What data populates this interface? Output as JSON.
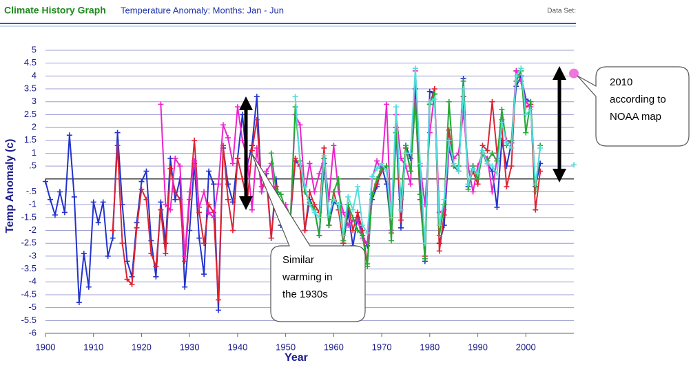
{
  "chart_data": {
    "type": "line",
    "title": "Climate History Graph",
    "subtitle": "Temperature Anomaly: Months: Jan - Jun",
    "data_set_label": "Data Set:",
    "x_label": "Year",
    "y_label": "Temp Anomaly (c)",
    "xlim": [
      1900,
      2010
    ],
    "xticks": [
      1900,
      1910,
      1920,
      1930,
      1940,
      1950,
      1960,
      1970,
      1980,
      1990,
      2000
    ],
    "ylim": [
      -6,
      5
    ],
    "yticks": [
      5,
      4.5,
      4,
      3.5,
      3,
      2.5,
      2,
      1.5,
      1,
      {
        "value": 0.5,
        "label": ".5"
      },
      {
        "value": -0.5,
        "label": "-.5"
      },
      -1,
      -1.5,
      -2,
      -2.5,
      -3,
      -3.5,
      -4,
      -4.5,
      -5,
      -5.5,
      -6
    ],
    "grid": true,
    "series": [
      {
        "color": "#2233cc",
        "x": [
          1900,
          1901,
          1902,
          1903,
          1904,
          1905,
          1906,
          1907,
          1908,
          1909,
          1910,
          1911,
          1912,
          1913,
          1914,
          1915,
          1916,
          1917,
          1918,
          1919,
          1920,
          1921,
          1922,
          1923,
          1924,
          1925,
          1926,
          1927,
          1928,
          1929,
          1930,
          1931,
          1932,
          1933,
          1934,
          1935,
          1936,
          1937,
          1938,
          1939,
          1940,
          1941,
          1942,
          1943,
          1944,
          1945,
          1946,
          1947,
          1948,
          1949,
          1950,
          1951,
          1952,
          1953,
          1954,
          1955,
          1956,
          1957,
          1958,
          1959,
          1960,
          1961,
          1962,
          1963,
          1964,
          1965,
          1966,
          1967,
          1968,
          1969,
          1970,
          1971,
          1972,
          1973,
          1974,
          1975,
          1976,
          1977,
          1978,
          1979,
          1980,
          1981,
          1982,
          1983,
          1984,
          1985,
          1986,
          1987,
          1988,
          1989,
          1990,
          1991,
          1992,
          1993,
          1994,
          1995,
          1996,
          1997,
          1998,
          1999,
          2000,
          2001,
          2002,
          2003
        ],
        "values": [
          -0.1,
          -0.8,
          -1.4,
          -0.5,
          -1.3,
          1.7,
          -0.7,
          -4.8,
          -2.9,
          -4.2,
          -0.9,
          -1.7,
          -0.9,
          -3.0,
          -2.3,
          1.8,
          -1.0,
          -3.2,
          -3.8,
          -1.7,
          -0.1,
          0.3,
          -2.4,
          -3.8,
          -0.9,
          -2.5,
          0.8,
          -0.8,
          0.0,
          -4.2,
          -2.0,
          0.6,
          -2.3,
          -3.7,
          0.3,
          -0.2,
          -5.1,
          1.2,
          -0.2,
          -0.9,
          0.8,
          2.5,
          0.5,
          1.3,
          3.2,
          -0.5,
          0.2,
          -2.3,
          0.0,
          -1.8,
          -1.2,
          -1.5,
          0.7,
          0.5,
          -2.0,
          -0.8,
          -1.2,
          -2.2,
          0.6,
          -1.8,
          -0.9,
          -1.0,
          -2.5,
          -1.3,
          -2.6,
          -1.5,
          -2.2,
          -2.6,
          -0.8,
          -0.3,
          0.5,
          -0.2,
          -2.0,
          1.8,
          -1.9,
          1.3,
          0.8,
          3.5,
          0.0,
          -3.2,
          3.4,
          3.3,
          -2.5,
          -1.8,
          1.2,
          0.5,
          0.3,
          3.9,
          -0.3,
          0.5,
          0.0,
          1.0,
          0.6,
          0.3,
          -1.1,
          1.5,
          0.5,
          1.4,
          3.6,
          4.0,
          3.1,
          3.0,
          -0.3,
          0.6
        ]
      },
      {
        "color": "#dd2233",
        "x": [
          1914,
          1915,
          1916,
          1917,
          1918,
          1919,
          1920,
          1921,
          1922,
          1923,
          1924,
          1925,
          1926,
          1927,
          1928,
          1929,
          1930,
          1931,
          1932,
          1933,
          1934,
          1935,
          1936,
          1937,
          1938,
          1939,
          1940,
          1941,
          1942,
          1943,
          1944,
          1945,
          1946,
          1947,
          1948,
          1949,
          1950,
          1951,
          1952,
          1953,
          1954,
          1955,
          1956,
          1957,
          1958,
          1959,
          1960,
          1961,
          1962,
          1963,
          1964,
          1965,
          1966,
          1967,
          1968,
          1969,
          1970,
          1971,
          1972,
          1973,
          1974,
          1975,
          1976,
          1977,
          1978,
          1979,
          1980,
          1981,
          1982,
          1983,
          1984,
          1985,
          1986,
          1987,
          1988,
          1989,
          1990,
          1991,
          1992,
          1993,
          1994,
          1995,
          1996,
          1997,
          1998,
          1999,
          2000,
          2001,
          2002,
          2003
        ],
        "values": [
          -2.0,
          1.3,
          -2.5,
          -3.9,
          -4.1,
          -1.9,
          -0.4,
          -0.8,
          -2.9,
          -3.4,
          -1.2,
          -2.9,
          0.4,
          -0.5,
          -0.8,
          -3.2,
          -0.8,
          1.5,
          -1.3,
          -2.5,
          -1.0,
          -1.3,
          -4.7,
          1.3,
          -0.8,
          -2.0,
          0.8,
          0.0,
          -0.9,
          1.1,
          2.3,
          -0.3,
          0.0,
          -2.3,
          -0.3,
          -1.5,
          -1.8,
          -1.5,
          0.8,
          0.5,
          -2.0,
          -0.5,
          -1.0,
          -1.3,
          1.2,
          -1.8,
          -0.5,
          -1.2,
          -2.5,
          -1.0,
          -2.0,
          -1.3,
          -2.0,
          -3.3,
          -0.6,
          -0.2,
          0.3,
          0.5,
          -2.1,
          2.0,
          -1.6,
          1.2,
          0.3,
          3.0,
          -0.8,
          -3.0,
          2.9,
          3.5,
          -2.8,
          -1.4,
          1.9,
          0.5,
          0.5,
          3.2,
          -0.2,
          0.3,
          -0.2,
          1.3,
          1.1,
          3.0,
          1.0,
          2.0,
          -0.3,
          0.5,
          4.2,
          3.8,
          2.8,
          2.9,
          -1.2,
          0.3
        ]
      },
      {
        "color": "#ee22cc",
        "x": [
          1924,
          1925,
          1926,
          1927,
          1928,
          1929,
          1930,
          1931,
          1932,
          1933,
          1934,
          1935,
          1936,
          1937,
          1938,
          1939,
          1940,
          1941,
          1942,
          1943,
          1944,
          1945,
          1946,
          1947,
          1948,
          1949,
          1950,
          1951,
          1952,
          1953,
          1954,
          1955,
          1956,
          1957,
          1958,
          1959,
          1960,
          1961,
          1962,
          1963,
          1964,
          1965,
          1966,
          1967,
          1968,
          1969,
          1970,
          1971,
          1972,
          1973,
          1974,
          1975,
          1976,
          1977,
          1978,
          1979,
          1980,
          1981,
          1982,
          1983,
          1984,
          1985,
          1986,
          1987,
          1988,
          1989,
          1990,
          1991,
          1992,
          1993,
          1994,
          1995,
          1996,
          1997,
          1998,
          1999,
          2000,
          2001
        ],
        "values": [
          2.9,
          -1.0,
          -1.2,
          0.8,
          0.5,
          -3.0,
          -0.5,
          0.7,
          -1.1,
          -0.5,
          -1.3,
          -1.5,
          -0.2,
          2.1,
          1.6,
          0.6,
          2.8,
          1.5,
          0.8,
          -1.2,
          1.2,
          -0.5,
          0.3,
          0.6,
          -1.0,
          -1.5,
          -1.0,
          -1.5,
          2.5,
          2.1,
          -0.5,
          0.6,
          -0.5,
          0.2,
          0.8,
          -0.8,
          1.3,
          -0.5,
          -1.3,
          -1.8,
          -1.6,
          -1.6,
          -2.3,
          -2.5,
          0.0,
          0.7,
          0.3,
          2.9,
          -2.0,
          2.5,
          0.8,
          0.5,
          -0.2,
          4.2,
          0.5,
          -1.0,
          1.8,
          3.3,
          -1.3,
          -1.2,
          1.2,
          0.8,
          1.0,
          2.6,
          0.5,
          -0.5,
          0.5,
          1.0,
          0.8,
          -0.5,
          0.8,
          2.3,
          1.5,
          1.4,
          4.2,
          3.8,
          3.0,
          2.8
        ]
      },
      {
        "color": "#22aa33",
        "x": [
          1947,
          1948,
          1949,
          1950,
          1951,
          1952,
          1953,
          1954,
          1955,
          1956,
          1957,
          1958,
          1959,
          1960,
          1961,
          1962,
          1963,
          1964,
          1965,
          1966,
          1967,
          1968,
          1969,
          1970,
          1971,
          1972,
          1973,
          1974,
          1975,
          1976,
          1977,
          1978,
          1979,
          1980,
          1981,
          1982,
          1983,
          1984,
          1985,
          1986,
          1987,
          1988,
          1989,
          1990,
          1991,
          1992,
          1993,
          1994,
          1995,
          1996,
          1997,
          1998,
          1999,
          2000,
          2001,
          2002,
          2003
        ],
        "values": [
          1.0,
          -0.4,
          -0.6,
          -1.2,
          -1.6,
          2.8,
          0.7,
          -0.5,
          -0.9,
          -1.2,
          -2.2,
          0.8,
          -1.8,
          -0.5,
          0.0,
          -2.4,
          -1.0,
          -1.5,
          -2.0,
          -2.2,
          -3.4,
          -0.6,
          0.0,
          0.4,
          0.5,
          -2.4,
          1.8,
          -0.8,
          1.3,
          0.3,
          3.0,
          -0.6,
          -3.1,
          2.9,
          3.3,
          -2.2,
          -1.0,
          3.0,
          0.5,
          0.5,
          3.8,
          -0.4,
          0.5,
          0.0,
          1.0,
          0.7,
          1.0,
          0.7,
          2.7,
          1.3,
          1.5,
          3.8,
          4.2,
          1.8,
          3.0,
          -0.5,
          1.3
        ]
      },
      {
        "color": "#55dddd",
        "x": [
          1952,
          1953,
          1954,
          1955,
          1956,
          1957,
          1958,
          1959,
          1960,
          1961,
          1962,
          1963,
          1964,
          1965,
          1966,
          1967,
          1968,
          1969,
          1970,
          1971,
          1972,
          1973,
          1974,
          1975,
          1976,
          1977,
          1978,
          1979,
          1980,
          1981,
          1982,
          1983,
          1984,
          1985,
          1986,
          1987,
          1988,
          1989,
          1990,
          1991,
          1992,
          1993,
          1994,
          1995,
          1996,
          1997,
          1998,
          1999,
          2000,
          2001,
          2002,
          2003,
          2004,
          2010
        ],
        "values": [
          3.2,
          0.6,
          -0.3,
          -1.0,
          -1.3,
          -1.5,
          0.9,
          -1.4,
          -0.8,
          -1.0,
          -2.2,
          -0.7,
          -1.2,
          -0.3,
          -1.8,
          -2.1,
          0.1,
          0.4,
          0.6,
          0.3,
          -1.5,
          2.8,
          -1.2,
          1.0,
          1.0,
          4.3,
          0.6,
          -2.5,
          3.0,
          3.1,
          -1.8,
          -0.8,
          1.5,
          0.6,
          0.3,
          3.5,
          -0.2,
          0.4,
          0.2,
          1.1,
          0.6,
          0.5,
          0.2,
          2.2,
          1.4,
          1.2,
          4.0,
          4.3,
          2.5,
          2.7,
          -0.2,
          1.2,
          null,
          0.55
        ]
      }
    ],
    "highlight_point": {
      "x": 2010,
      "value": 4.1,
      "color": "#ee77dd"
    },
    "annotations": [
      {
        "lines": [
          "2010",
          "according to",
          "NOAA map"
        ]
      },
      {
        "lines": [
          "Similar",
          "warming in",
          "the 1930s"
        ]
      }
    ]
  }
}
